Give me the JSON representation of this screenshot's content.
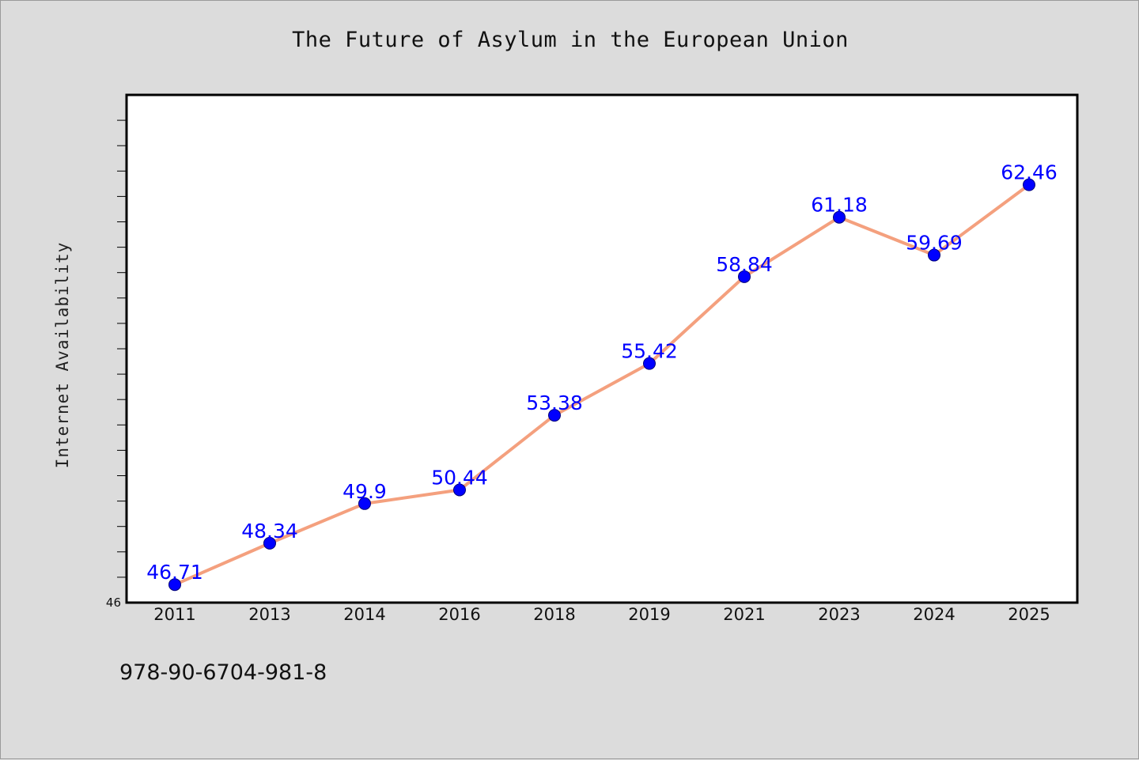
{
  "chart_data": {
    "type": "line",
    "title": "The Future of Asylum in the European Union",
    "xlabel": "",
    "ylabel": "Internet Availability",
    "categories": [
      "2011",
      "2013",
      "2014",
      "2016",
      "2018",
      "2019",
      "2021",
      "2023",
      "2024",
      "2025"
    ],
    "series": [
      {
        "values": [
          46.71,
          48.34,
          49.9,
          50.44,
          53.38,
          55.42,
          58.84,
          61.18,
          59.69,
          62.46
        ],
        "labels": [
          "46.71",
          "48.34",
          "49.9",
          "50.44",
          "53.38",
          "55.42",
          "58.84",
          "61.18",
          "59.69",
          "62.46"
        ]
      }
    ],
    "ylim": [
      46,
      66
    ],
    "y_tick_labels": [
      "46"
    ],
    "grid": false,
    "line_color": "#f4a07e",
    "marker_color": "#0000ff",
    "label_color": "#0000ff"
  },
  "footer_text": "978-90-6704-981-8"
}
